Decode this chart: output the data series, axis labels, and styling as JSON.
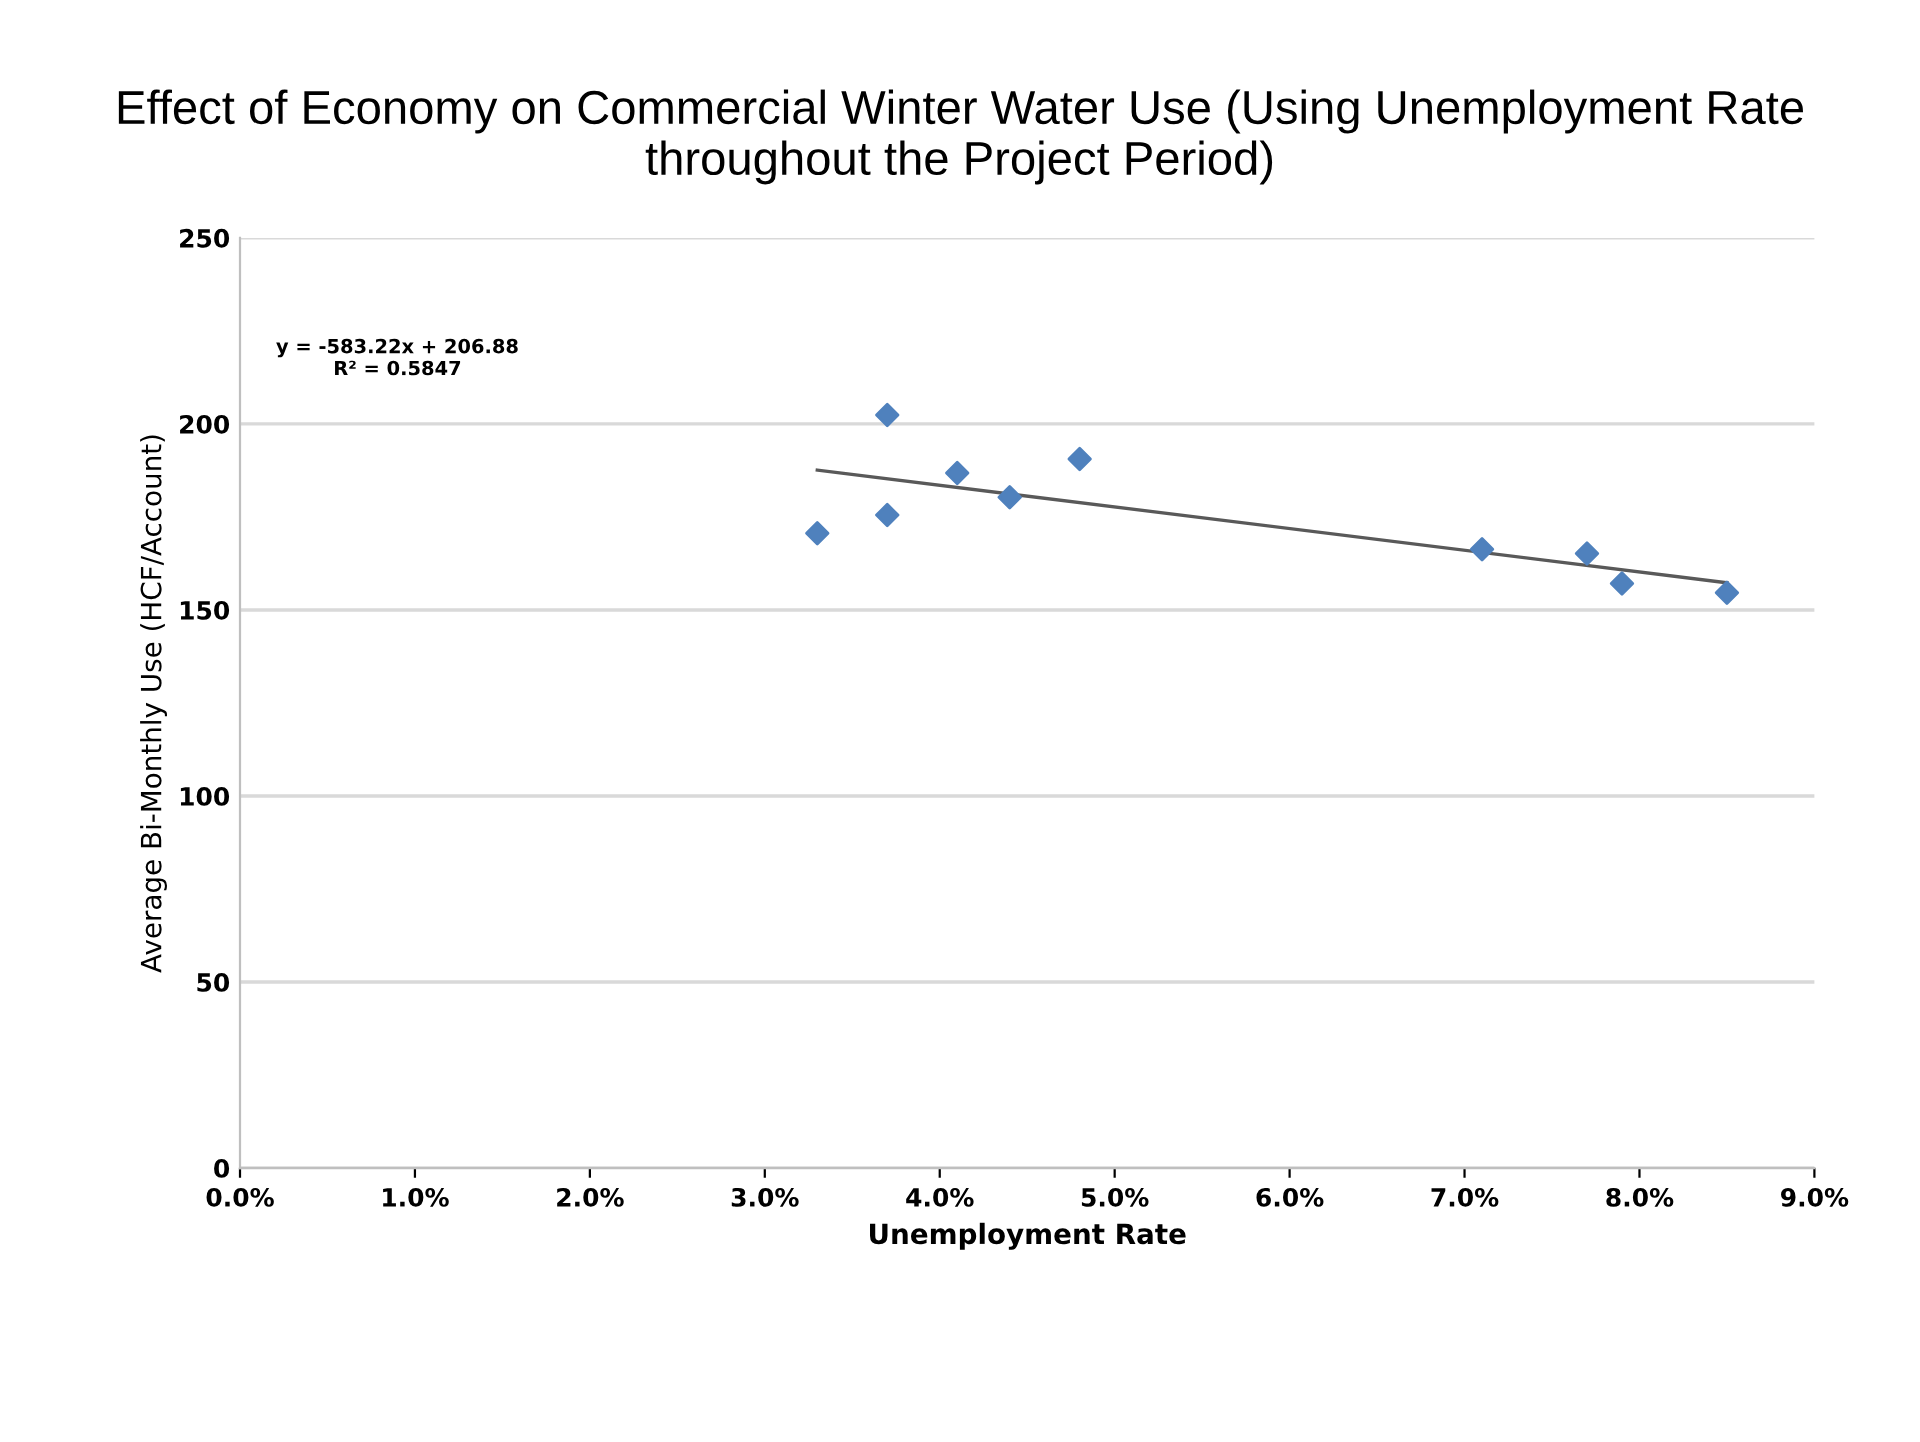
{
  "chart_data": {
    "type": "scatter",
    "title": "Effect of Economy on Commercial Winter Water Use (Using Unemployment Rate throughout the Project Period)",
    "xlabel": "Unemployment Rate",
    "ylabel": "Average Bi-Monthly Use (HCF/Account)",
    "annotations": [
      "y = -583.22x + 206.88\nR² = 0.5847"
    ],
    "series": [
      {
        "color": "#4f81bd",
        "marker": "diamond",
        "x": [
          0.033,
          0.037,
          0.037,
          0.041,
          0.044,
          0.048,
          0.071,
          0.077,
          0.079,
          0.085
        ],
        "values": [
          170.6,
          202.4,
          175.5,
          186.8,
          180.3,
          190.6,
          166.3,
          165.2,
          157.1,
          154.6
        ]
      },
      {
        "type": "line",
        "color": "#595959",
        "marker": "none",
        "x": [
          0.033,
          0.085
        ],
        "values": [
          187.6,
          157.3
        ]
      }
    ],
    "xlim": [
      0,
      0.09
    ],
    "xticks": [
      {
        "value": 0,
        "label": "0.0%"
      },
      {
        "value": 0.01,
        "label": "1.0%"
      },
      {
        "value": 0.02,
        "label": "2.0%"
      },
      {
        "value": 0.03,
        "label": "3.0%"
      },
      {
        "value": 0.04,
        "label": "4.0%"
      },
      {
        "value": 0.05,
        "label": "5.0%"
      },
      {
        "value": 0.06,
        "label": "6.0%"
      },
      {
        "value": 0.07,
        "label": "7.0%"
      },
      {
        "value": 0.08,
        "label": "8.0%"
      },
      {
        "value": 0.09,
        "label": "9.0%"
      }
    ],
    "ylim": [
      0,
      250
    ],
    "yticks": [
      0,
      50,
      100,
      150,
      200,
      250
    ],
    "grid": "y"
  }
}
